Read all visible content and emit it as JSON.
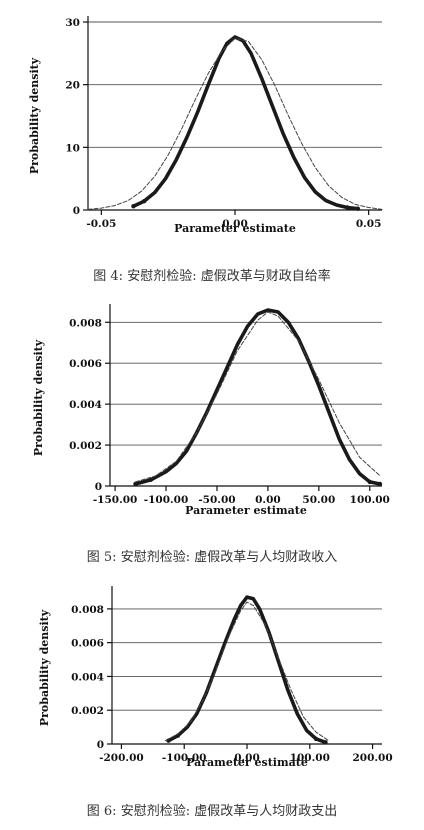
{
  "chart_data": [
    {
      "type": "line",
      "caption": "图 4: 安慰剂检验: 虚假改革与财政自给率",
      "xlabel": "Parameter estimate",
      "ylabel": "Probability density",
      "xlim": [
        -0.055,
        0.055
      ],
      "ylim": [
        0,
        30
      ],
      "xticks": [
        -0.05,
        0.0,
        0.05
      ],
      "xtick_labels": [
        "-0.05",
        "0.00",
        "0.05"
      ],
      "yticks": [
        0,
        10,
        20,
        30
      ],
      "ytick_labels": [
        "0",
        "10",
        "20",
        "30"
      ],
      "grid": "horizontal",
      "series": [
        {
          "role": "kernel-density",
          "style": "thick",
          "x": [
            -0.038,
            -0.034,
            -0.03,
            -0.026,
            -0.022,
            -0.018,
            -0.014,
            -0.01,
            -0.006,
            -0.003,
            0.0,
            0.003,
            0.006,
            0.01,
            0.014,
            0.018,
            0.022,
            0.026,
            0.03,
            0.034,
            0.038,
            0.042,
            0.046
          ],
          "y": [
            0.6,
            1.4,
            2.8,
            5.0,
            8.0,
            11.6,
            15.6,
            20.0,
            24.2,
            26.6,
            27.6,
            27.0,
            25.0,
            21.0,
            16.6,
            12.2,
            8.4,
            5.2,
            2.9,
            1.5,
            0.8,
            0.4,
            0.2
          ]
        },
        {
          "role": "normal-density",
          "style": "thin",
          "x": [
            -0.055,
            -0.05,
            -0.045,
            -0.04,
            -0.035,
            -0.03,
            -0.025,
            -0.02,
            -0.015,
            -0.01,
            -0.005,
            0.0,
            0.005,
            0.01,
            0.015,
            0.02,
            0.025,
            0.03,
            0.035,
            0.04,
            0.045,
            0.05,
            0.055
          ],
          "y": [
            0.1,
            0.3,
            0.7,
            1.5,
            3.0,
            5.4,
            8.8,
            12.9,
            17.5,
            21.8,
            25.3,
            27.4,
            26.9,
            24.0,
            19.8,
            15.0,
            10.6,
            6.8,
            3.9,
            2.0,
            0.9,
            0.4,
            0.1
          ]
        }
      ]
    },
    {
      "type": "line",
      "caption": "图 5: 安慰剂检验: 虚假改革与人均财政收入",
      "xlabel": "Parameter estimate",
      "ylabel": "Probability density",
      "xlim": [
        -155,
        112
      ],
      "ylim": [
        0,
        0.0086
      ],
      "xticks": [
        -150,
        -100,
        -50,
        0,
        50,
        100
      ],
      "xtick_labels": [
        "-150.00",
        "-100.00",
        "-50.00",
        "0.00",
        "50.00",
        "100.00"
      ],
      "yticks": [
        0,
        0.002,
        0.004,
        0.006,
        0.008
      ],
      "ytick_labels": [
        "0",
        "0.002",
        "0.004",
        "0.006",
        "0.008"
      ],
      "grid": "horizontal",
      "series": [
        {
          "role": "kernel-density",
          "style": "thick",
          "x": [
            -130,
            -115,
            -100,
            -90,
            -80,
            -70,
            -60,
            -50,
            -40,
            -30,
            -20,
            -10,
            0,
            10,
            20,
            30,
            40,
            50,
            60,
            70,
            80,
            90,
            100,
            110
          ],
          "y": [
            0.0001,
            0.0003,
            0.0007,
            0.0011,
            0.0017,
            0.0026,
            0.0036,
            0.0047,
            0.0058,
            0.0069,
            0.0078,
            0.0084,
            0.0086,
            0.0085,
            0.008,
            0.0072,
            0.0061,
            0.0049,
            0.0036,
            0.0023,
            0.0013,
            0.0006,
            0.0002,
            0.0001
          ]
        },
        {
          "role": "normal-density",
          "style": "thin",
          "x": [
            -130,
            -110,
            -90,
            -70,
            -50,
            -30,
            -10,
            0,
            10,
            30,
            50,
            70,
            90,
            110
          ],
          "y": [
            0.0002,
            0.0005,
            0.0012,
            0.0026,
            0.0045,
            0.0066,
            0.0081,
            0.0085,
            0.0083,
            0.0071,
            0.0052,
            0.0031,
            0.0014,
            0.0005
          ]
        }
      ]
    },
    {
      "type": "line",
      "caption": "图 6: 安慰剂检验: 虚假改革与人均财政支出",
      "xlabel": "Parameter estimate",
      "ylabel": "Probability density",
      "xlim": [
        -215,
        215
      ],
      "ylim": [
        0,
        0.009
      ],
      "xticks": [
        -200,
        -100,
        0,
        100,
        200
      ],
      "xtick_labels": [
        "-200.00",
        "-100.00",
        "0.00",
        "100.00",
        "200.00"
      ],
      "yticks": [
        0,
        0.002,
        0.004,
        0.006,
        0.008
      ],
      "ytick_labels": [
        "0",
        "0.002",
        "0.004",
        "0.006",
        "0.008"
      ],
      "grid": "horizontal",
      "series": [
        {
          "role": "kernel-density",
          "style": "thick",
          "x": [
            -125,
            -110,
            -95,
            -80,
            -65,
            -50,
            -35,
            -20,
            -10,
            0,
            10,
            20,
            35,
            50,
            65,
            80,
            95,
            110,
            125
          ],
          "y": [
            0.0002,
            0.0005,
            0.001,
            0.0018,
            0.003,
            0.0045,
            0.006,
            0.0074,
            0.0082,
            0.0087,
            0.0086,
            0.008,
            0.0066,
            0.0049,
            0.0032,
            0.0018,
            0.0008,
            0.0003,
            0.0001
          ]
        },
        {
          "role": "normal-density",
          "style": "thin",
          "x": [
            -130,
            -110,
            -90,
            -70,
            -50,
            -30,
            -10,
            0,
            10,
            30,
            50,
            70,
            90,
            110,
            130
          ],
          "y": [
            0.0002,
            0.0006,
            0.0013,
            0.0026,
            0.0043,
            0.0063,
            0.0079,
            0.0084,
            0.0082,
            0.007,
            0.0051,
            0.0032,
            0.0016,
            0.0007,
            0.0002
          ]
        }
      ]
    }
  ]
}
